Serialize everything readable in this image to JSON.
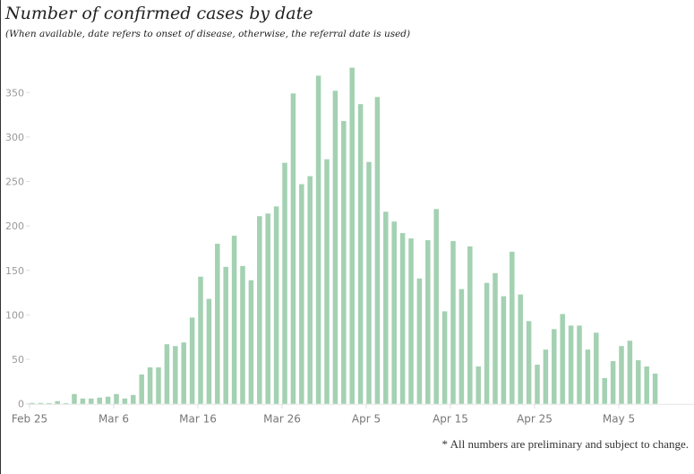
{
  "chart_data": {
    "type": "bar",
    "title": "Number of confirmed cases by date",
    "subtitle": "(When available, date refers to onset of disease, otherwise, the referral date is used)",
    "footnote": "* All numbers are preliminary and subject to change.",
    "xlabel": "",
    "ylabel": "",
    "start_date": "Feb 25",
    "ylim": [
      0,
      380
    ],
    "yticks": [
      0,
      50,
      100,
      150,
      200,
      250,
      300,
      350
    ],
    "xtick_labels": [
      {
        "label": "Feb 25",
        "day": 0
      },
      {
        "label": "Mar 6",
        "day": 10
      },
      {
        "label": "Mar 16",
        "day": 20
      },
      {
        "label": "Mar 26",
        "day": 30
      },
      {
        "label": "Apr 5",
        "day": 40
      },
      {
        "label": "Apr 15",
        "day": 50
      },
      {
        "label": "Apr 25",
        "day": 60
      },
      {
        "label": "May 5",
        "day": 70
      }
    ],
    "color": "#a3d1b2",
    "values": [
      1,
      1,
      0,
      3,
      0,
      11,
      6,
      6,
      7,
      8,
      11,
      6,
      10,
      33,
      41,
      41,
      67,
      65,
      69,
      97,
      143,
      118,
      180,
      154,
      189,
      155,
      139,
      211,
      214,
      222,
      271,
      349,
      247,
      256,
      369,
      275,
      352,
      318,
      378,
      337,
      272,
      345,
      216,
      205,
      192,
      186,
      141,
      184,
      219,
      104,
      183,
      129,
      177,
      42,
      136,
      147,
      121,
      171,
      123,
      93,
      44,
      61,
      84,
      101,
      88,
      88,
      61,
      80,
      29,
      48,
      65,
      71,
      49,
      42,
      34
    ]
  }
}
